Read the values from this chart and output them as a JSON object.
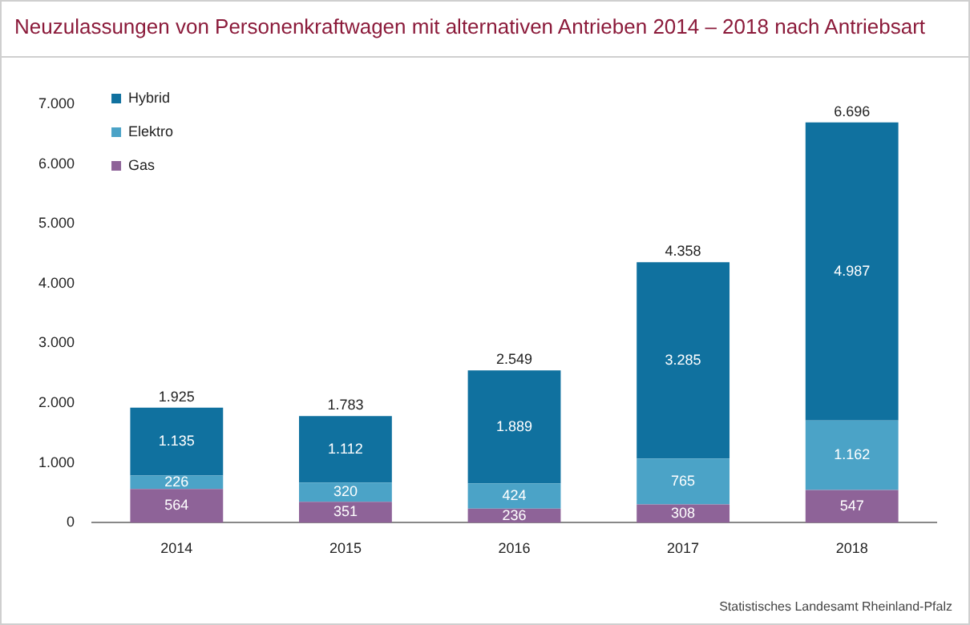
{
  "chart_data": {
    "type": "bar",
    "title": "Neuzulassungen von Personenkraftwagen mit alternativen Antrieben 2014 – 2018 nach Antriebsart",
    "categories": [
      "2014",
      "2015",
      "2016",
      "2017",
      "2018"
    ],
    "stacked": true,
    "legend": "top left",
    "grid": false,
    "ylim": [
      0,
      7000
    ],
    "yticks": [
      {
        "value": 0,
        "label": "0"
      },
      {
        "value": 1000,
        "label": "1.000"
      },
      {
        "value": 2000,
        "label": "2.000"
      },
      {
        "value": 3000,
        "label": "3.000"
      },
      {
        "value": 4000,
        "label": "4.000"
      },
      {
        "value": 5000,
        "label": "5.000"
      },
      {
        "value": 6000,
        "label": "6.000"
      },
      {
        "value": 7000,
        "label": "7.000"
      }
    ],
    "series": [
      {
        "name": "Gas",
        "color": "#8e6398",
        "values": [
          564,
          351,
          236,
          308,
          547
        ],
        "value_labels": [
          "564",
          "351",
          "236",
          "308",
          "547"
        ]
      },
      {
        "name": "Elektro",
        "color": "#4ba3c7",
        "values": [
          226,
          320,
          424,
          765,
          1162
        ],
        "value_labels": [
          "226",
          "320",
          "424",
          "765",
          "1.162"
        ]
      },
      {
        "name": "Hybrid",
        "color": "#10719f",
        "values": [
          1135,
          1112,
          1889,
          3285,
          4987
        ],
        "value_labels": [
          "1.135",
          "1.112",
          "1.889",
          "3.285",
          "4.987"
        ]
      }
    ],
    "totals": [
      "1.925",
      "1.783",
      "2.549",
      "4.358",
      "6.696"
    ],
    "annotations": [
      "Statistisches Landesamt Rheinland-Pfalz"
    ]
  }
}
